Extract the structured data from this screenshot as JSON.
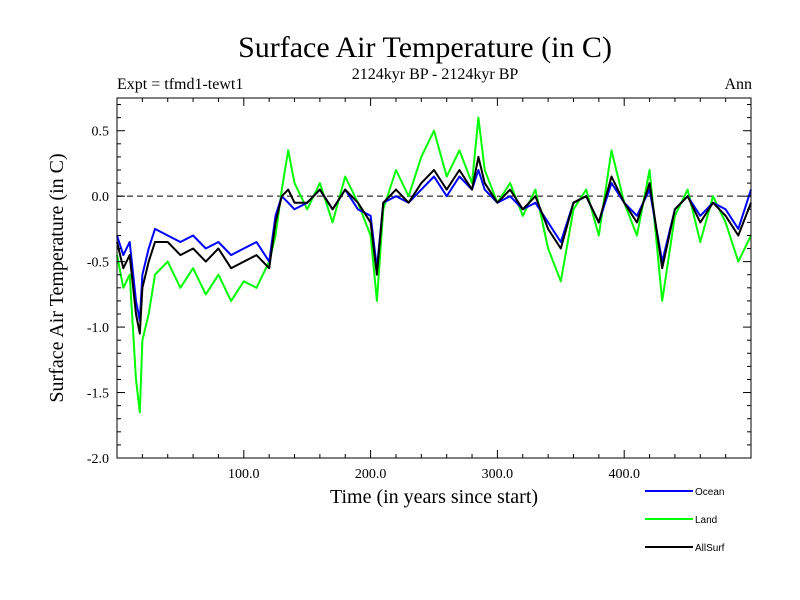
{
  "chart_data": {
    "type": "line",
    "title": "Surface Air Temperature (in C)",
    "subtitle": "2124kyr BP - 2124kyr BP",
    "left_label": "Expt = tfmd1-tewt1",
    "right_label": "Ann",
    "xlabel": "Time (in years since start)",
    "ylabel": "Surface Air Temperature (in C)",
    "xlim": [
      0,
      500
    ],
    "ylim": [
      -2.0,
      0.75
    ],
    "x_ticks": [
      100,
      200,
      300,
      400
    ],
    "x_tick_labels": [
      "100.0",
      "200.0",
      "300.0",
      "400.0"
    ],
    "y_ticks": [
      -2.0,
      -1.5,
      -1.0,
      -0.5,
      0.0,
      0.5
    ],
    "y_tick_labels": [
      "-2.0",
      "-1.5",
      "-1.0",
      "-0.5",
      "0.0",
      "0.5"
    ],
    "reference_line": 0.0,
    "legend": {
      "position": "bottom-right",
      "entries": [
        {
          "name": "Ocean",
          "color": "#0000ff"
        },
        {
          "name": "Land",
          "color": "#00ff00"
        },
        {
          "name": "AllSurf",
          "color": "#000000"
        }
      ]
    },
    "series": [
      {
        "name": "Land",
        "color": "#00ff00",
        "x": [
          0,
          5,
          10,
          15,
          18,
          20,
          25,
          30,
          40,
          50,
          60,
          70,
          80,
          90,
          100,
          110,
          120,
          125,
          130,
          135,
          140,
          150,
          160,
          170,
          180,
          190,
          200,
          205,
          210,
          220,
          230,
          240,
          250,
          260,
          270,
          280,
          285,
          290,
          300,
          310,
          320,
          330,
          340,
          350,
          360,
          370,
          380,
          390,
          400,
          410,
          420,
          430,
          440,
          450,
          460,
          470,
          480,
          490,
          500
        ],
        "values": [
          -0.45,
          -0.7,
          -0.6,
          -1.4,
          -1.65,
          -1.1,
          -0.9,
          -0.6,
          -0.5,
          -0.7,
          -0.55,
          -0.75,
          -0.6,
          -0.8,
          -0.65,
          -0.7,
          -0.5,
          -0.3,
          0.05,
          0.35,
          0.1,
          -0.1,
          0.1,
          -0.2,
          0.15,
          -0.05,
          -0.3,
          -0.8,
          -0.1,
          0.2,
          0.0,
          0.3,
          0.5,
          0.15,
          0.35,
          0.1,
          0.6,
          0.2,
          -0.05,
          0.1,
          -0.15,
          0.05,
          -0.4,
          -0.65,
          -0.1,
          0.05,
          -0.3,
          0.35,
          -0.05,
          -0.3,
          0.2,
          -0.8,
          -0.15,
          0.05,
          -0.35,
          0.0,
          -0.2,
          -0.5,
          -0.3
        ]
      },
      {
        "name": "Ocean",
        "color": "#0000ff",
        "x": [
          0,
          5,
          10,
          15,
          18,
          20,
          25,
          30,
          40,
          50,
          60,
          70,
          80,
          90,
          100,
          110,
          120,
          125,
          130,
          135,
          140,
          150,
          160,
          170,
          180,
          190,
          200,
          205,
          210,
          220,
          230,
          240,
          250,
          260,
          270,
          280,
          285,
          290,
          300,
          310,
          320,
          330,
          340,
          350,
          360,
          370,
          380,
          390,
          400,
          410,
          420,
          430,
          440,
          450,
          460,
          470,
          480,
          490,
          500
        ],
        "values": [
          -0.3,
          -0.45,
          -0.35,
          -0.8,
          -0.95,
          -0.6,
          -0.4,
          -0.25,
          -0.3,
          -0.35,
          -0.3,
          -0.4,
          -0.35,
          -0.45,
          -0.4,
          -0.35,
          -0.5,
          -0.15,
          0.0,
          -0.05,
          -0.1,
          -0.05,
          0.05,
          -0.1,
          0.05,
          -0.1,
          -0.15,
          -0.55,
          -0.05,
          0.0,
          -0.05,
          0.05,
          0.15,
          0.0,
          0.15,
          0.05,
          0.2,
          0.05,
          -0.05,
          0.0,
          -0.1,
          -0.05,
          -0.2,
          -0.35,
          -0.05,
          0.0,
          -0.2,
          0.1,
          -0.05,
          -0.15,
          0.05,
          -0.5,
          -0.1,
          0.0,
          -0.15,
          -0.05,
          -0.1,
          -0.25,
          0.05
        ]
      },
      {
        "name": "AllSurf",
        "color": "#000000",
        "x": [
          0,
          5,
          10,
          15,
          18,
          20,
          25,
          30,
          40,
          50,
          60,
          70,
          80,
          90,
          100,
          110,
          120,
          125,
          130,
          135,
          140,
          150,
          160,
          170,
          180,
          190,
          200,
          205,
          210,
          220,
          230,
          240,
          250,
          260,
          270,
          280,
          285,
          290,
          300,
          310,
          320,
          330,
          340,
          350,
          360,
          370,
          380,
          390,
          400,
          410,
          420,
          430,
          440,
          450,
          460,
          470,
          480,
          490,
          500
        ],
        "values": [
          -0.35,
          -0.55,
          -0.45,
          -0.9,
          -1.05,
          -0.7,
          -0.5,
          -0.35,
          -0.35,
          -0.45,
          -0.4,
          -0.5,
          -0.4,
          -0.55,
          -0.5,
          -0.45,
          -0.55,
          -0.2,
          0.0,
          0.05,
          -0.05,
          -0.05,
          0.05,
          -0.1,
          0.05,
          -0.05,
          -0.2,
          -0.6,
          -0.05,
          0.05,
          -0.05,
          0.1,
          0.2,
          0.05,
          0.2,
          0.05,
          0.3,
          0.1,
          -0.05,
          0.05,
          -0.1,
          0.0,
          -0.25,
          -0.4,
          -0.05,
          0.0,
          -0.2,
          0.15,
          -0.05,
          -0.2,
          0.1,
          -0.55,
          -0.1,
          0.0,
          -0.2,
          -0.05,
          -0.15,
          -0.3,
          -0.05
        ]
      }
    ]
  }
}
